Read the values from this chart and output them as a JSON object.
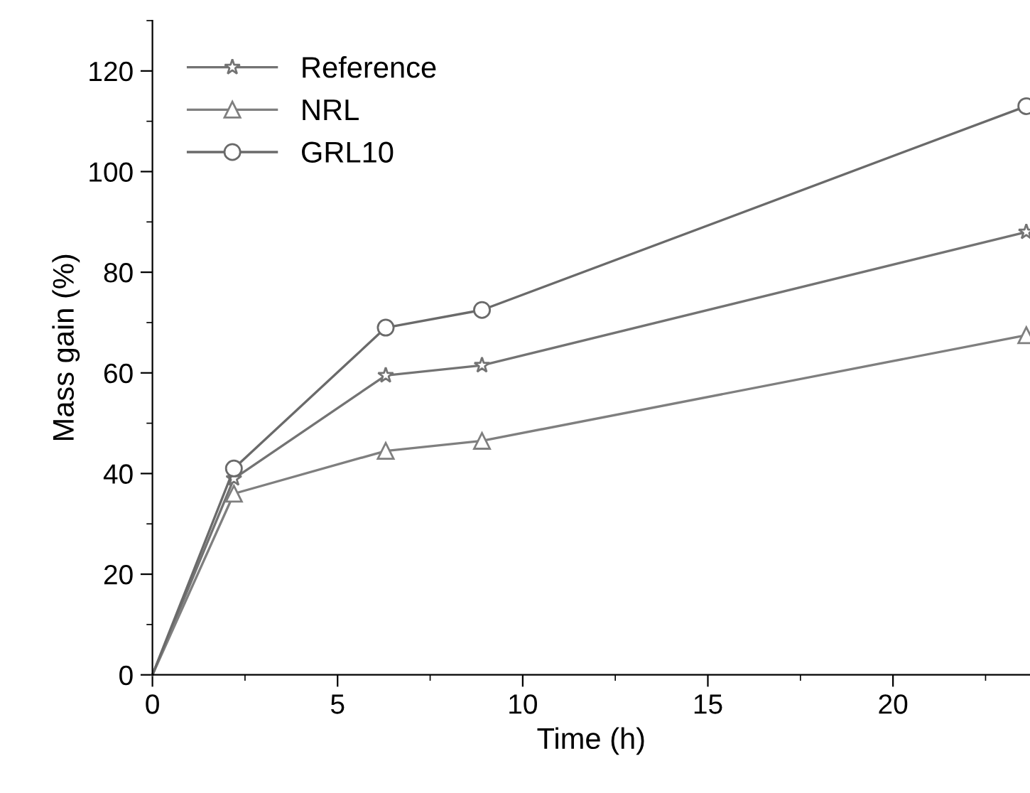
{
  "chart_data": {
    "type": "line",
    "xlabel": "Time (h)",
    "ylabel": "Mass gain (%)",
    "xlim": [
      0,
      23.7
    ],
    "ylim": [
      0,
      130
    ],
    "xticks": [
      0,
      5,
      10,
      15,
      20
    ],
    "yticks": [
      0,
      20,
      40,
      60,
      80,
      100,
      120
    ],
    "grid": false,
    "legend": "top left",
    "line_style": "solid",
    "series": [
      {
        "name": "Reference",
        "color": "#737373",
        "marker": "star",
        "x": [
          0,
          2.2,
          6.3,
          8.9,
          23.6
        ],
        "values": [
          0,
          39,
          59.5,
          61.5,
          88
        ]
      },
      {
        "name": "NRL",
        "color": "#7f7f7f",
        "marker": "triangle",
        "x": [
          0,
          2.2,
          6.3,
          8.9,
          23.6
        ],
        "values": [
          0,
          36,
          44.5,
          46.5,
          67.5
        ]
      },
      {
        "name": "GRL10",
        "color": "#6a6a6a",
        "marker": "circle",
        "x": [
          0,
          2.2,
          6.3,
          8.9,
          23.6
        ],
        "values": [
          0,
          41,
          69,
          72.5,
          113
        ]
      }
    ]
  }
}
